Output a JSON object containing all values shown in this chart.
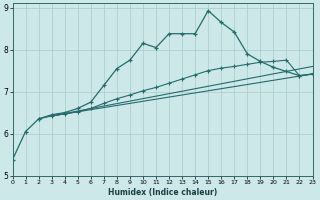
{
  "xlabel": "Humidex (Indice chaleur)",
  "xlim": [
    0,
    23
  ],
  "ylim": [
    5,
    9.1
  ],
  "xticks": [
    0,
    1,
    2,
    3,
    4,
    5,
    6,
    7,
    8,
    9,
    10,
    11,
    12,
    13,
    14,
    15,
    16,
    17,
    18,
    19,
    20,
    21,
    22,
    23
  ],
  "yticks": [
    5,
    6,
    7,
    8,
    9
  ],
  "background_color": "#cce8e8",
  "grid_color": "#aacccc",
  "line_color": "#266b6b",
  "line1_x": [
    0,
    1,
    2,
    3,
    4,
    5,
    6,
    7,
    8,
    9,
    10,
    11,
    12,
    13,
    14,
    15,
    16,
    17,
    18,
    19,
    20,
    21,
    22,
    23
  ],
  "line1_y": [
    5.38,
    6.05,
    6.35,
    6.45,
    6.5,
    6.6,
    6.75,
    7.15,
    7.55,
    7.75,
    8.15,
    8.05,
    8.38,
    8.38,
    8.38,
    8.93,
    8.65,
    8.42,
    7.9,
    7.72,
    7.58,
    7.48,
    7.38,
    7.42
  ],
  "line2_x": [
    2,
    3,
    4,
    5,
    6,
    7,
    8,
    9,
    10,
    11,
    12,
    13,
    14,
    15,
    16,
    17,
    18,
    19,
    20,
    21,
    22,
    23
  ],
  "line2_y": [
    6.35,
    6.42,
    6.47,
    6.52,
    6.6,
    6.72,
    6.83,
    6.92,
    7.02,
    7.1,
    7.2,
    7.3,
    7.4,
    7.5,
    7.56,
    7.6,
    7.65,
    7.7,
    7.72,
    7.75,
    7.38,
    7.42
  ],
  "line3_x": [
    3,
    23
  ],
  "line3_y": [
    6.42,
    7.6
  ],
  "line4_x": [
    3,
    23
  ],
  "line4_y": [
    6.42,
    7.42
  ]
}
